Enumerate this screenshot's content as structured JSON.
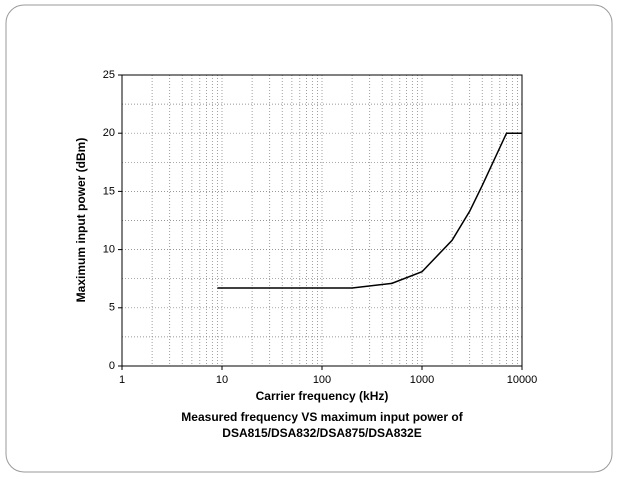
{
  "chart_data": {
    "type": "line",
    "title": [
      "Measured frequency VS maximum input power of",
      "DSA815/DSA832/DSA875/DSA832E"
    ],
    "x_label": "Carrier frequency (kHz)",
    "y_label": "Maximum input power (dBm)",
    "x": [
      9,
      200,
      500,
      1000,
      2000,
      3000,
      4000,
      7000,
      10000
    ],
    "series": [
      {
        "color": "#000000",
        "values": [
          6.7,
          6.7,
          7.1,
          8.1,
          10.8,
          13.3,
          15.5,
          20,
          20
        ]
      }
    ],
    "xlim": [
      1,
      10000
    ],
    "xticks": [
      1,
      10,
      100,
      1000,
      10000
    ],
    "x_log": true,
    "ylim": [
      0,
      25
    ],
    "yticks": [
      0,
      5,
      10,
      15,
      20,
      25
    ],
    "grid": true
  }
}
